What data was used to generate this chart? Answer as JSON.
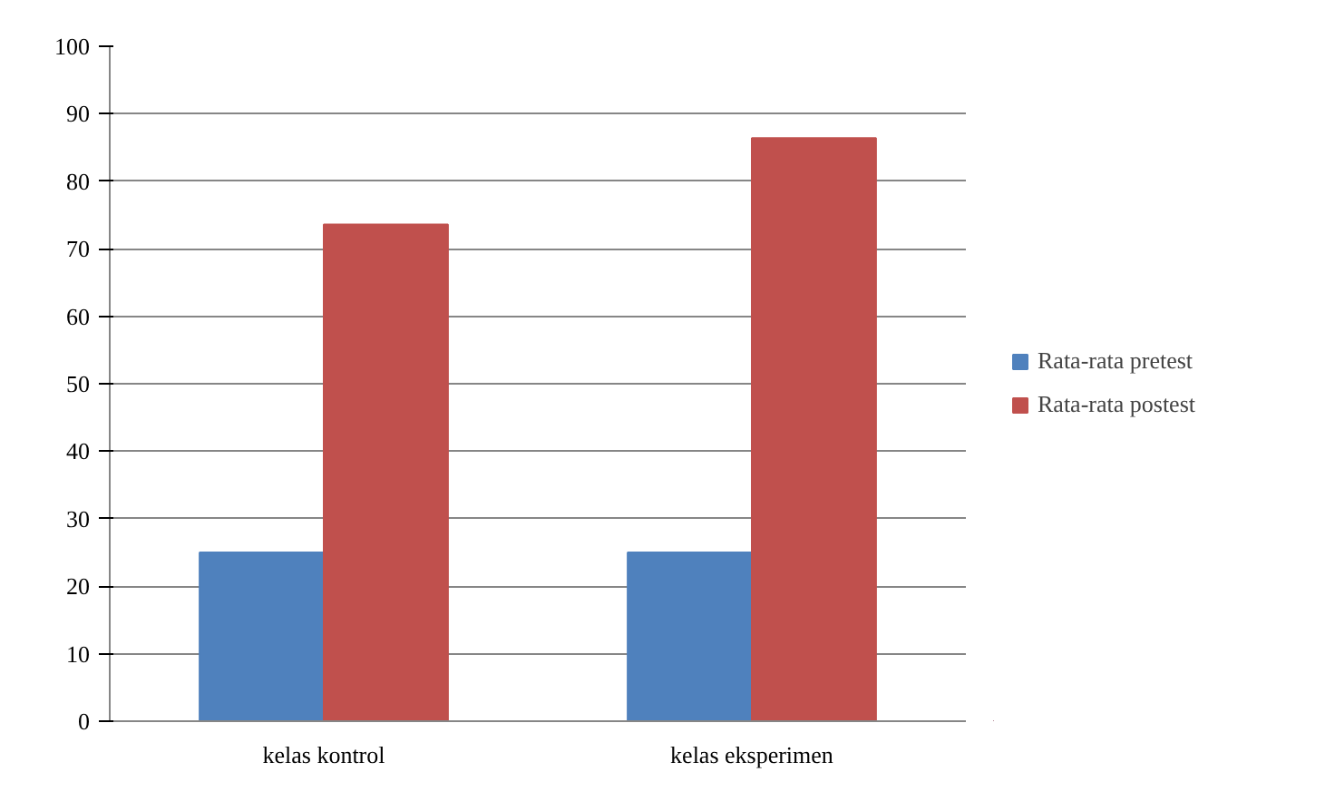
{
  "chart_data": {
    "type": "bar",
    "categories": [
      "kelas kontrol",
      "kelas eksperimen"
    ],
    "series": [
      {
        "name": "Rata-rata pretest",
        "color": "#4f81bd",
        "values": [
          25,
          25
        ]
      },
      {
        "name": "Rata-rata postest",
        "color": "#c0504d",
        "values": [
          73.6,
          86.4
        ]
      }
    ],
    "ylim": [
      0,
      100
    ],
    "yticks": [
      0,
      10,
      20,
      30,
      40,
      50,
      60,
      70,
      80,
      90,
      100
    ],
    "grid": "y",
    "legend": "right"
  }
}
